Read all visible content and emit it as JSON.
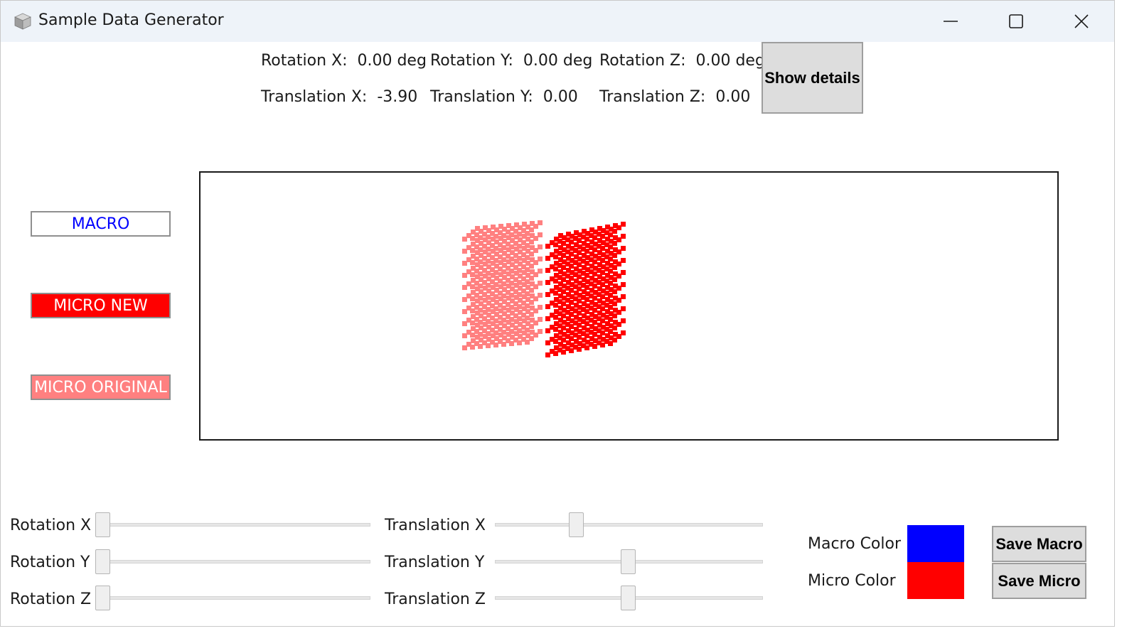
{
  "window": {
    "title": "Sample Data Generator",
    "icon": "cube-icon",
    "controls": {
      "minimize": "minimize-icon",
      "maximize": "maximize-icon",
      "close": "close-icon"
    }
  },
  "info": {
    "rotation_x": "Rotation X:  0.00 deg",
    "rotation_y": "Rotation Y:  0.00 deg",
    "rotation_z": "Rotation Z:  0.00 deg",
    "translation_x": "Translation X:  -3.90",
    "translation_y": "Translation Y:  0.00",
    "translation_z": "Translation Z:  0.00",
    "details_button": "Show details"
  },
  "legend": {
    "macro": "MACRO",
    "micro_new": "MICRO NEW",
    "micro_original": "MICRO ORIGINAL"
  },
  "colors": {
    "macro": "#0000ff",
    "micro_new": "#ff0000",
    "micro_original": "#ff8080"
  },
  "sliders": [
    {
      "id": "rotation-x",
      "label": "Rotation X",
      "level": 0.0
    },
    {
      "id": "rotation-y",
      "label": "Rotation Y",
      "level": 0.0
    },
    {
      "id": "rotation-z",
      "label": "Rotation Z",
      "level": 0.0
    },
    {
      "id": "translation-x",
      "label": "Translation X",
      "level": 0.31
    },
    {
      "id": "translation-y",
      "label": "Translation Y",
      "level": 0.5
    },
    {
      "id": "translation-z",
      "label": "Translation Z",
      "level": 0.5
    }
  ],
  "color_settings": {
    "macro_label": "Macro Color",
    "micro_label": "Micro Color",
    "macro_color": "#0000ff",
    "micro_color": "#ff0000"
  },
  "actions": {
    "save_macro": "Save Macro",
    "save_micro": "Save Micro"
  }
}
